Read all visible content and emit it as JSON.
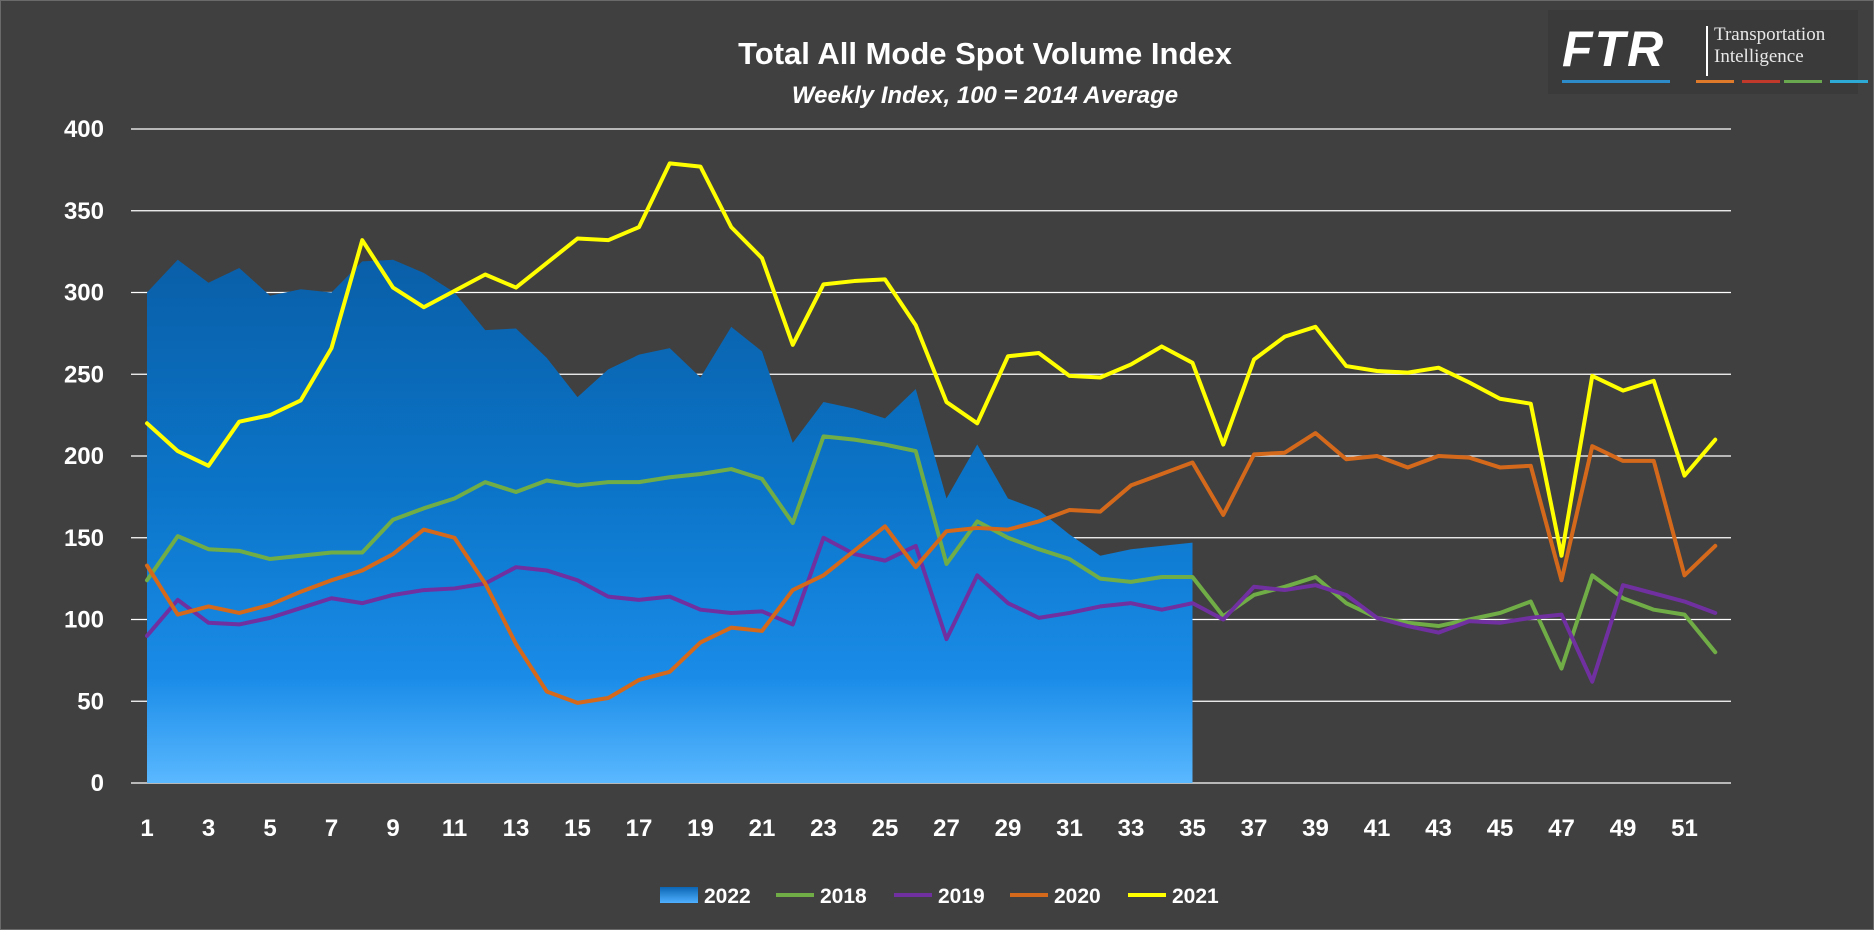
{
  "chart_data": {
    "type": "line",
    "title": "Total All Mode Spot Volume Index",
    "subtitle": "Weekly Index, 100 = 2014 Average",
    "xlabel": "",
    "ylabel": "",
    "ylim": [
      0,
      400
    ],
    "yticks": [
      0,
      50,
      100,
      150,
      200,
      250,
      300,
      350,
      400
    ],
    "xlim": [
      1,
      52
    ],
    "xtick_labels": [
      "1",
      "3",
      "5",
      "7",
      "9",
      "11",
      "13",
      "15",
      "17",
      "19",
      "21",
      "23",
      "25",
      "27",
      "29",
      "31",
      "33",
      "35",
      "37",
      "39",
      "41",
      "43",
      "45",
      "47",
      "49",
      "51"
    ],
    "grid": "horizontal",
    "legend_position": "bottom",
    "series": [
      {
        "name": "2022",
        "kind": "area",
        "color": "#1e88e5",
        "values": [
          300,
          320,
          306,
          315,
          298,
          302,
          300,
          319,
          320,
          312,
          300,
          277,
          278,
          260,
          236,
          253,
          262,
          266,
          248,
          279,
          264,
          208,
          233,
          229,
          223,
          241,
          174,
          207,
          174,
          167,
          152,
          139,
          143,
          145,
          147
        ]
      },
      {
        "name": "2018",
        "kind": "line",
        "color": "#70ad47",
        "values": [
          124,
          151,
          143,
          142,
          137,
          139,
          141,
          141,
          161,
          168,
          174,
          184,
          178,
          185,
          182,
          184,
          184,
          187,
          189,
          192,
          186,
          159,
          212,
          210,
          207,
          203,
          134,
          160,
          150,
          143,
          137,
          125,
          123,
          126,
          126,
          102,
          115,
          120,
          126,
          110,
          101,
          98,
          96,
          100,
          104,
          111,
          70,
          127,
          113,
          106,
          103,
          80
        ]
      },
      {
        "name": "2019",
        "kind": "line",
        "color": "#7030a0",
        "values": [
          90,
          112,
          98,
          97,
          101,
          107,
          113,
          110,
          115,
          118,
          119,
          122,
          132,
          130,
          124,
          114,
          112,
          114,
          106,
          104,
          105,
          97,
          150,
          140,
          136,
          145,
          88,
          127,
          110,
          101,
          104,
          108,
          110,
          106,
          110,
          100,
          120,
          118,
          121,
          115,
          101,
          96,
          92,
          99,
          98,
          101,
          103,
          62,
          121,
          116,
          111,
          104
        ]
      },
      {
        "name": "2020",
        "kind": "line",
        "color": "#d4691c",
        "values": [
          133,
          103,
          108,
          104,
          109,
          117,
          124,
          130,
          140,
          155,
          150,
          122,
          85,
          56,
          49,
          52,
          63,
          68,
          86,
          95,
          93,
          118,
          127,
          142,
          157,
          132,
          154,
          156,
          155,
          160,
          167,
          166,
          182,
          189,
          196,
          164,
          201,
          202,
          214,
          198,
          200,
          193,
          200,
          199,
          193,
          194,
          124,
          206,
          197,
          197,
          127,
          145
        ]
      },
      {
        "name": "2021",
        "kind": "line",
        "color": "#ffff00",
        "values": [
          220,
          203,
          194,
          221,
          225,
          234,
          266,
          332,
          303,
          291,
          301,
          311,
          303,
          318,
          333,
          332,
          340,
          379,
          377,
          340,
          321,
          268,
          305,
          307,
          308,
          280,
          233,
          220,
          261,
          263,
          249,
          248,
          256,
          267,
          257,
          207,
          259,
          273,
          279,
          255,
          252,
          251,
          254,
          245,
          235,
          232,
          139,
          249,
          240,
          246,
          188,
          210
        ]
      }
    ]
  },
  "logo": {
    "brand": "FTR",
    "line1": "Transportation",
    "line2": "Intelligence",
    "stripe_colors": [
      "#2e8bc9",
      "#e07a2b",
      "#c0392b",
      "#6aa84f",
      "#2eaad6"
    ]
  }
}
